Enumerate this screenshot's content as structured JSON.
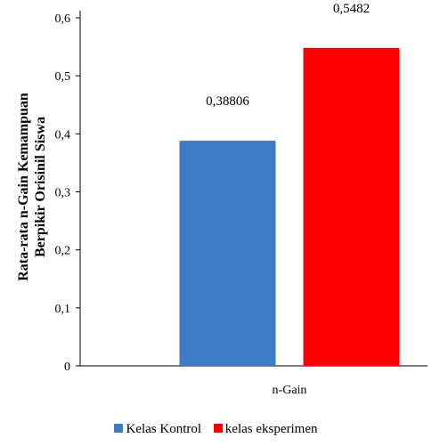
{
  "chart_data": {
    "type": "bar",
    "categories": [
      "n-Gain"
    ],
    "series": [
      {
        "name": "Kelas Kontrol",
        "values": [
          0.38806
        ],
        "color": "#3D7CC4",
        "label": "0,38806"
      },
      {
        "name": "kelas eksperimen",
        "values": [
          0.5482
        ],
        "color": "#FF0000",
        "label": "0,5482"
      }
    ],
    "ylabel_lines": [
      "Rata-rata n-Gain Kemampuan",
      "Berpikir Orisinil Siswa"
    ],
    "xlabel": "",
    "ylim": [
      0,
      0.6
    ],
    "yticks": [
      {
        "value": 0,
        "label": "0"
      },
      {
        "value": 0.1,
        "label": "0,1"
      },
      {
        "value": 0.2,
        "label": "0,2"
      },
      {
        "value": 0.3,
        "label": "0,3"
      },
      {
        "value": 0.4,
        "label": "0,4"
      },
      {
        "value": 0.5,
        "label": "0,5"
      },
      {
        "value": 0.6,
        "label": "0,6"
      }
    ],
    "grid": false,
    "legend_position": "bottom"
  }
}
